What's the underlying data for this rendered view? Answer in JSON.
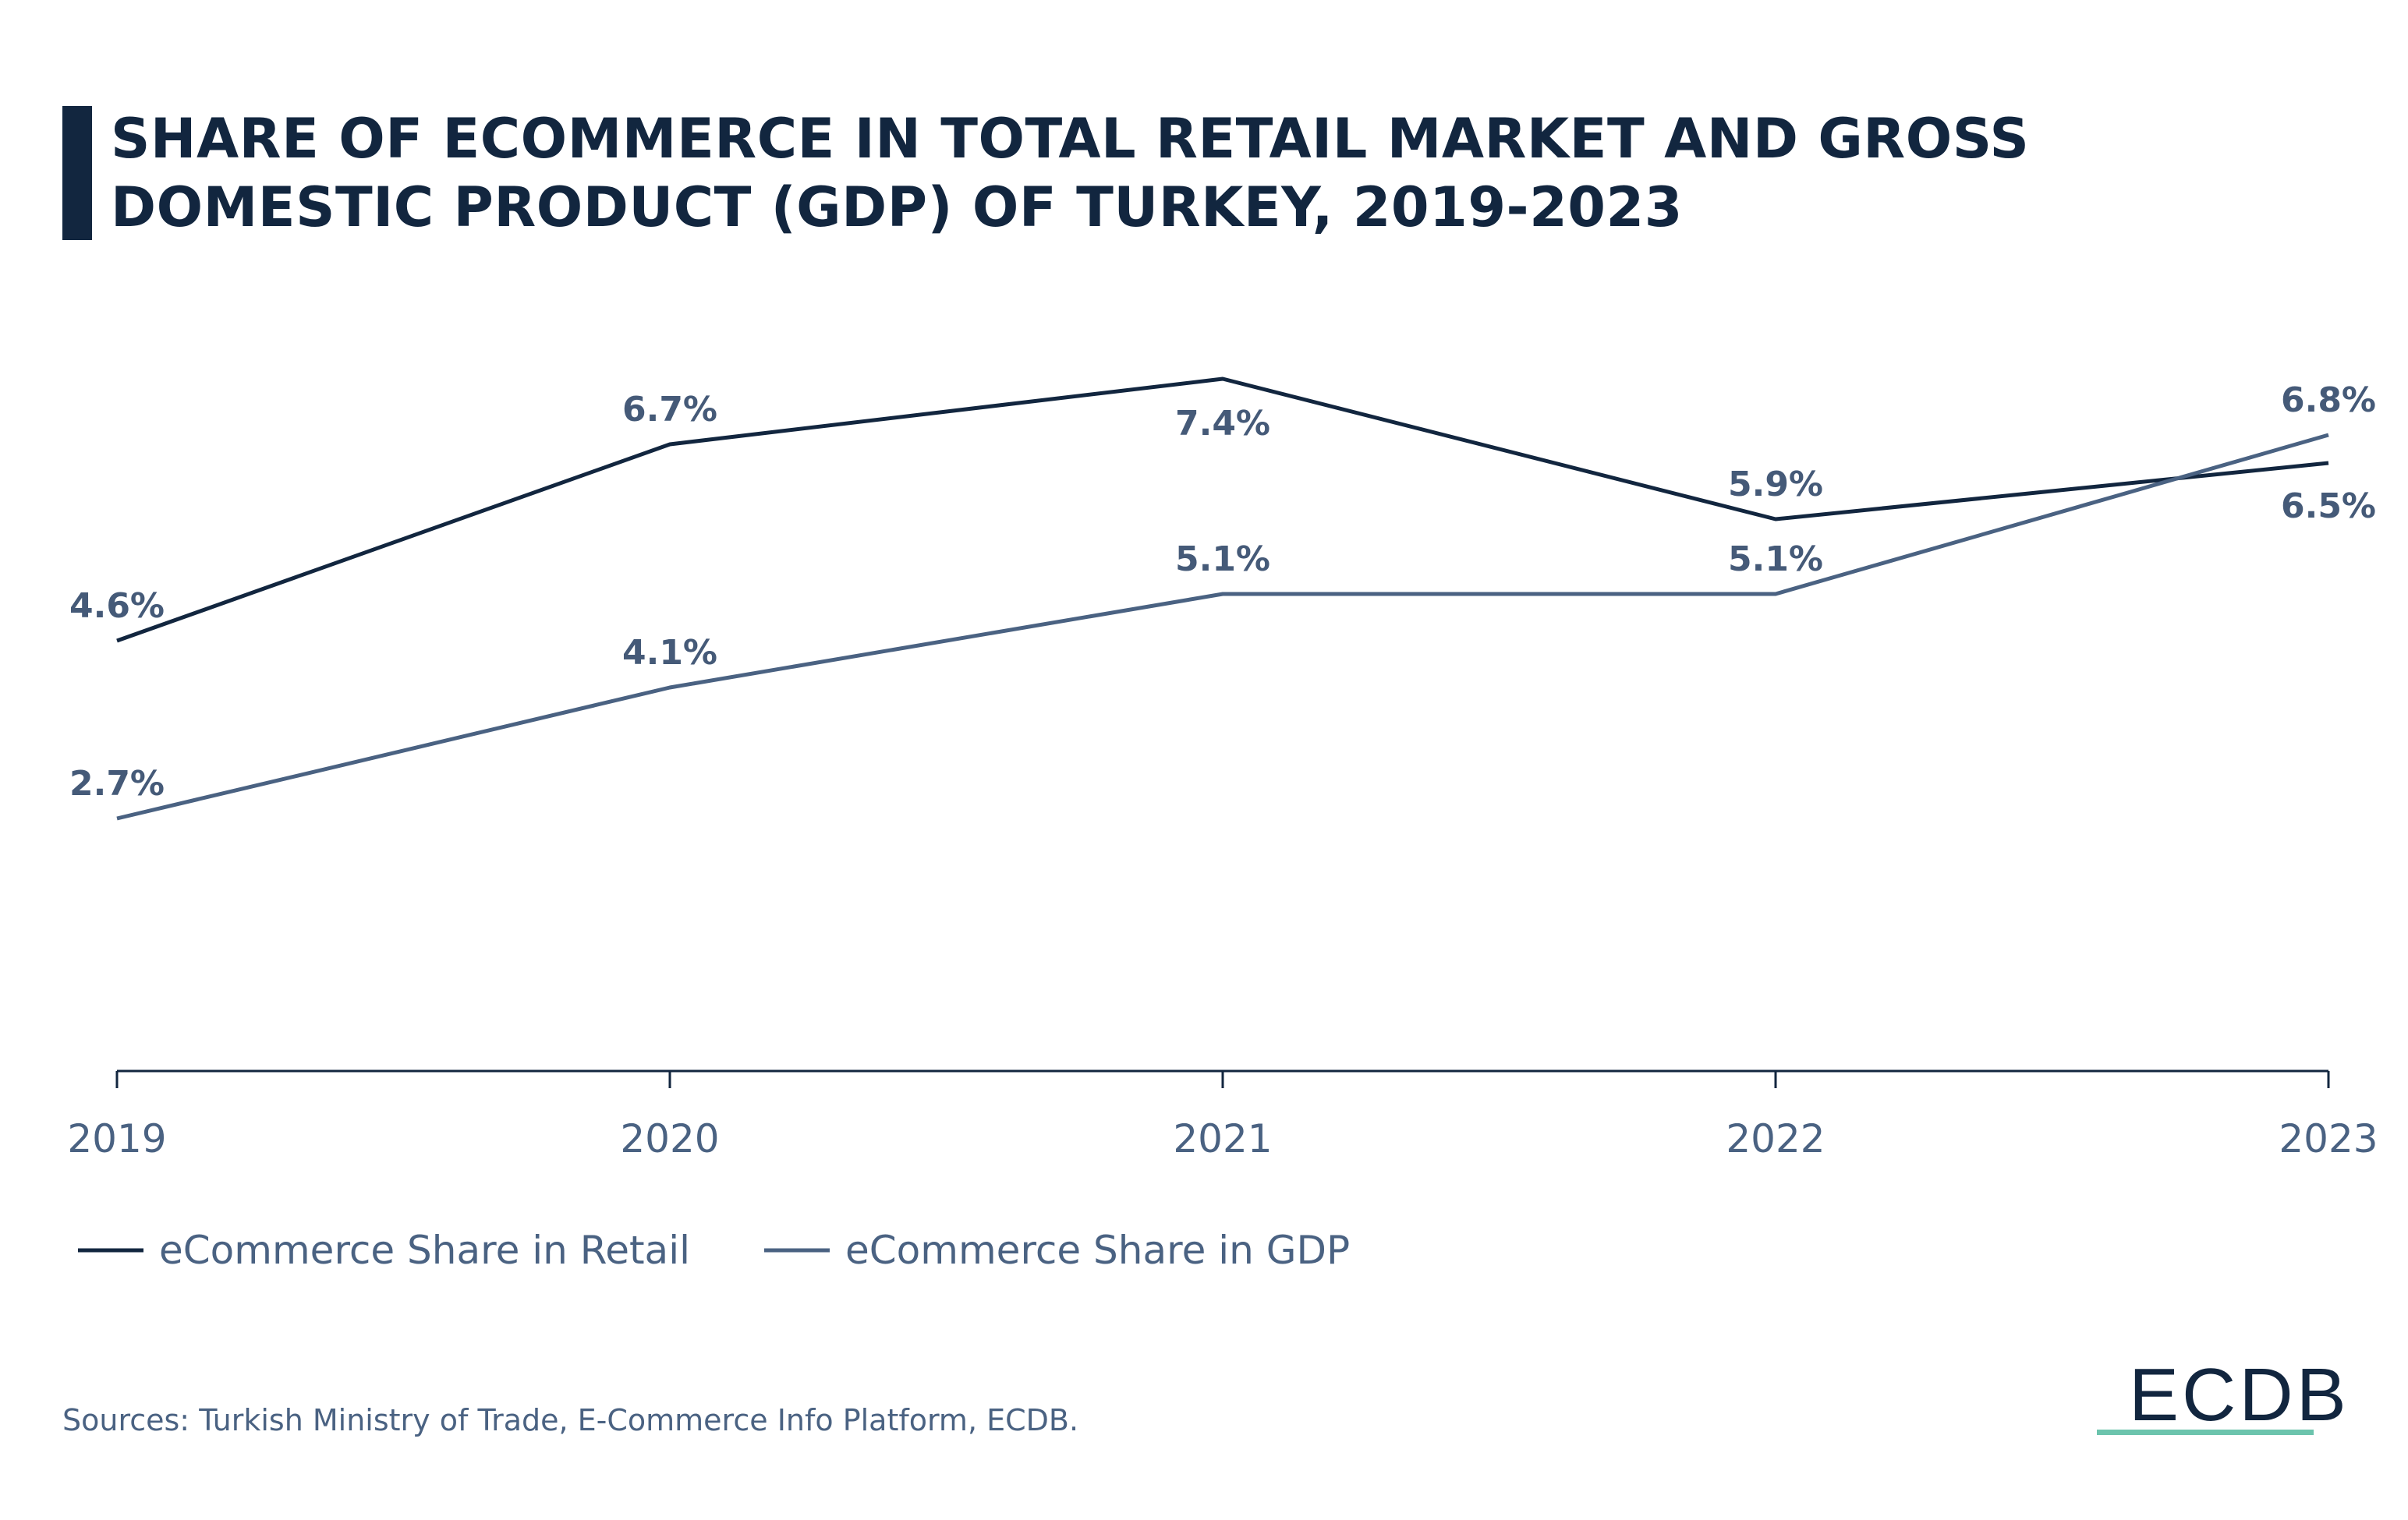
{
  "title": "SHARE OF ECOMMERCE IN TOTAL RETAIL MARKET AND GROSS DOMESTIC PRODUCT (GDP) OF TURKEY, 2019-2023",
  "source": "Sources: Turkish Ministry of Trade, E-Commerce Info Platform, ECDB.",
  "logo": "ECDB",
  "colors": {
    "retail": "#12263f",
    "gdp": "#4a6282",
    "accent": "#6cc4ad",
    "labels": "#455a78"
  },
  "chart_data": {
    "type": "line",
    "categories": [
      "2019",
      "2020",
      "2021",
      "2022",
      "2023"
    ],
    "series": [
      {
        "name": "eCommerce Share in Retail",
        "values": [
          4.6,
          6.7,
          7.4,
          5.9,
          6.5
        ],
        "labels": [
          "4.6%",
          "6.7%",
          "7.4%",
          "5.9%",
          "6.5%"
        ]
      },
      {
        "name": "eCommerce Share in GDP",
        "values": [
          2.7,
          4.1,
          5.1,
          5.1,
          6.8
        ],
        "labels": [
          "2.7%",
          "4.1%",
          "5.1%",
          "5.1%",
          "6.8%"
        ]
      }
    ],
    "ylim": [
      0,
      9
    ],
    "grid": false,
    "legend": "bottom-left",
    "unit": "%"
  }
}
